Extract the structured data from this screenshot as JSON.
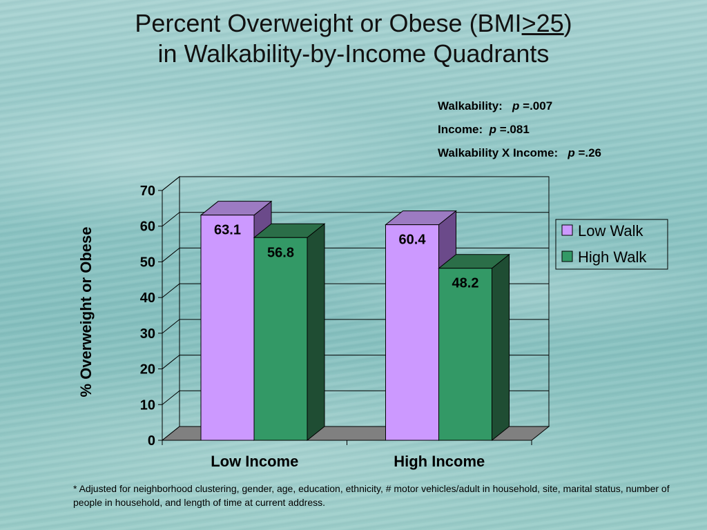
{
  "title": {
    "line1_prefix": "Percent Overweight or Obese (BMI",
    "line1_underlined": ">25",
    "line1_suffix": ")",
    "line2": "in Walkability-by-Income Quadrants"
  },
  "stats": [
    {
      "label": "Walkability:",
      "p_symbol": "p",
      "value": "=.007"
    },
    {
      "label": "Income:",
      "p_symbol": "p",
      "value": "=.081"
    },
    {
      "label": "Walkability X Income:",
      "p_symbol": "p",
      "value": "=.26"
    }
  ],
  "footnote": "* Adjusted for neighborhood clustering, gender, age, education, ethnicity, # motor vehicles/adult in household, site, marital status, number of people in household, and length of time at current address.",
  "colors": {
    "low_walk_front": "#cc99ff",
    "low_walk_side": "#6b4a8a",
    "low_walk_top": "#9c7bc2",
    "high_walk_front": "#339966",
    "high_walk_side": "#1f4d33",
    "high_walk_top": "#2b6e48",
    "floor": "#808080"
  },
  "chart_data": {
    "type": "bar",
    "categories": [
      "Low Income",
      "High Income"
    ],
    "series": [
      {
        "name": "Low Walk",
        "values": [
          63.1,
          60.4
        ],
        "labels": [
          "63.1",
          "60.4"
        ]
      },
      {
        "name": "High Walk",
        "values": [
          56.8,
          48.2
        ],
        "labels": [
          "56.8",
          "48.2"
        ]
      }
    ],
    "title": "",
    "xlabel": "",
    "ylabel": "% Overweight or Obese",
    "ylim": [
      0,
      70
    ],
    "yticks": [
      "0",
      "10",
      "20",
      "30",
      "40",
      "50",
      "60",
      "70"
    ],
    "grid": true,
    "legend_position": "right",
    "style": "3d"
  }
}
